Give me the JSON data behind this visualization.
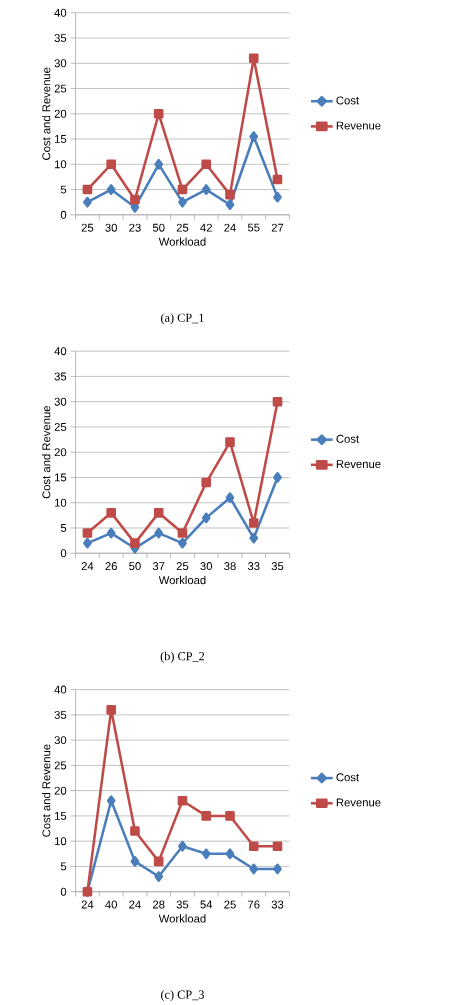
{
  "chart_data": [
    {
      "type": "line",
      "categories": [
        "25",
        "30",
        "23",
        "50",
        "25",
        "42",
        "24",
        "55",
        "27"
      ],
      "xlabel": "Workload",
      "ylabel": "Cost and Revenue",
      "ylim": [
        0,
        40
      ],
      "yticks": [
        0,
        5,
        10,
        15,
        20,
        25,
        30,
        35,
        40
      ],
      "grid": "y",
      "legend": "right",
      "annotations": [
        "(a) CP_1"
      ],
      "series": [
        {
          "name": "Cost",
          "color": "#4a7ebb",
          "marker": "diamond",
          "values": [
            2.5,
            5,
            1.5,
            10,
            2.5,
            5,
            2,
            15.5,
            3.5
          ]
        },
        {
          "name": "Revenue",
          "color": "#be4b48",
          "marker": "square",
          "values": [
            5,
            10,
            3,
            20,
            5,
            10,
            4,
            31,
            7
          ]
        }
      ]
    },
    {
      "type": "line",
      "categories": [
        "24",
        "26",
        "50",
        "37",
        "25",
        "30",
        "38",
        "33",
        "35"
      ],
      "xlabel": "Workload",
      "ylabel": "Cost and Revenue",
      "ylim": [
        0,
        40
      ],
      "yticks": [
        0,
        5,
        10,
        15,
        20,
        25,
        30,
        35,
        40
      ],
      "grid": "y",
      "legend": "right",
      "annotations": [
        "(b) CP_2"
      ],
      "series": [
        {
          "name": "Cost",
          "color": "#4a7ebb",
          "marker": "diamond",
          "values": [
            2,
            4,
            1,
            4,
            2,
            7,
            11,
            3,
            15
          ]
        },
        {
          "name": "Revenue",
          "color": "#be4b48",
          "marker": "square",
          "values": [
            4,
            8,
            2,
            8,
            4,
            14,
            22,
            6,
            30
          ]
        }
      ]
    },
    {
      "type": "line",
      "categories": [
        "24",
        "40",
        "24",
        "28",
        "35",
        "54",
        "25",
        "76",
        "33"
      ],
      "xlabel": "Workload",
      "ylabel": "Cost and Revenue",
      "ylim": [
        0,
        40
      ],
      "yticks": [
        0,
        5,
        10,
        15,
        20,
        25,
        30,
        35,
        40
      ],
      "grid": "y",
      "legend": "right",
      "annotations": [
        "(c) CP_3"
      ],
      "series": [
        {
          "name": "Cost",
          "color": "#4a7ebb",
          "marker": "diamond",
          "values": [
            0,
            18,
            6,
            3,
            9,
            7.5,
            7.5,
            4.5,
            4.5
          ]
        },
        {
          "name": "Revenue",
          "color": "#be4b48",
          "marker": "square",
          "values": [
            0,
            36,
            12,
            6,
            18,
            15,
            15,
            9,
            9
          ]
        }
      ]
    }
  ]
}
